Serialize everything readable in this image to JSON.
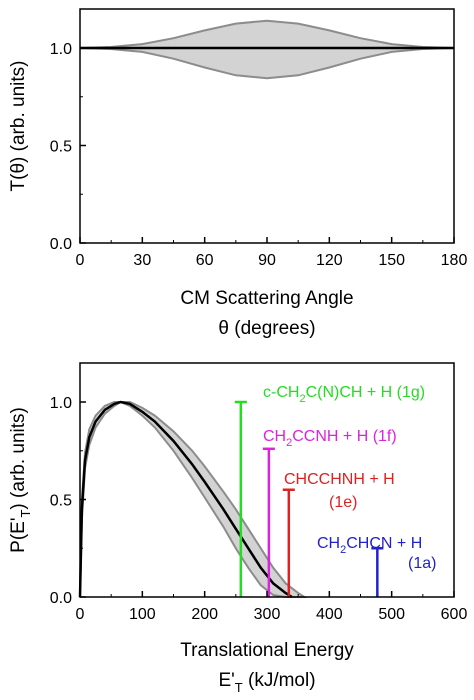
{
  "chart_data": [
    {
      "type": "area",
      "xlabel_line1": "CM Scattering Angle",
      "xlabel_line2": "θ (degrees)",
      "ylabel": "T(θ) (arb. units)",
      "xlim": [
        0,
        180
      ],
      "ylim": [
        0,
        1.2
      ],
      "xticks": [
        0,
        30,
        60,
        90,
        120,
        150,
        180
      ],
      "xtick_labels": [
        "0",
        "30",
        "60",
        "90",
        "120",
        "150",
        "180"
      ],
      "yticks": [
        0.0,
        0.5,
        1.0
      ],
      "ytick_labels": [
        "0.0",
        "0.5",
        "1.0"
      ],
      "best_fit": {
        "x": [
          0,
          180
        ],
        "y": [
          1.0,
          1.0
        ]
      },
      "envelope": {
        "x": [
          0,
          15,
          30,
          45,
          60,
          75,
          90,
          105,
          120,
          135,
          150,
          165,
          180
        ],
        "upper": [
          1.0,
          1.005,
          1.02,
          1.05,
          1.09,
          1.125,
          1.14,
          1.125,
          1.09,
          1.05,
          1.02,
          1.005,
          1.0
        ],
        "lower": [
          1.0,
          0.995,
          0.98,
          0.945,
          0.9,
          0.86,
          0.845,
          0.86,
          0.9,
          0.945,
          0.98,
          0.995,
          1.0
        ]
      },
      "colors": {
        "line": "#000000",
        "band_fill": "#d3d3d3",
        "band_edge": "#8c8c8c"
      }
    },
    {
      "type": "line",
      "xlabel_line1": "Translational Energy",
      "xlabel_main": "E'",
      "xlabel_sub": "T",
      "xlabel_rest": " (kJ/mol)",
      "ylabel_main": "P(E'",
      "ylabel_sub": "T",
      "ylabel_rest": ") (arb. units)",
      "xlim": [
        0,
        600
      ],
      "ylim": [
        0,
        1.2
      ],
      "xticks": [
        0,
        100,
        200,
        300,
        400,
        500,
        600
      ],
      "xtick_labels": [
        "0",
        "100",
        "200",
        "300",
        "400",
        "500",
        "600"
      ],
      "yticks": [
        0.0,
        0.5,
        1.0
      ],
      "ytick_labels": [
        "0.0",
        "0.5",
        "1.0"
      ],
      "best_fit": {
        "x": [
          0,
          3,
          8,
          15,
          25,
          40,
          55,
          65,
          80,
          100,
          120,
          150,
          180,
          200,
          230,
          250,
          270,
          290,
          310,
          330,
          340
        ],
        "y": [
          0.0,
          0.45,
          0.7,
          0.82,
          0.9,
          0.96,
          0.99,
          1.0,
          0.99,
          0.95,
          0.9,
          0.8,
          0.68,
          0.59,
          0.45,
          0.35,
          0.25,
          0.15,
          0.07,
          0.02,
          0.0
        ]
      },
      "envelope": {
        "x": [
          0,
          3,
          8,
          15,
          25,
          40,
          55,
          65,
          80,
          100,
          120,
          150,
          180,
          200,
          230,
          250,
          270,
          290,
          310,
          330,
          350,
          360
        ],
        "upper": [
          0.0,
          0.5,
          0.74,
          0.86,
          0.93,
          0.98,
          1.0,
          1.0,
          1.0,
          0.97,
          0.93,
          0.85,
          0.75,
          0.67,
          0.54,
          0.45,
          0.35,
          0.25,
          0.15,
          0.07,
          0.02,
          0.0
        ],
        "lower": [
          0.0,
          0.4,
          0.66,
          0.78,
          0.87,
          0.94,
          0.98,
          1.0,
          0.98,
          0.93,
          0.87,
          0.75,
          0.61,
          0.51,
          0.36,
          0.25,
          0.15,
          0.06,
          0.01,
          0.0,
          0.0,
          0.0
        ]
      },
      "thresholds": [
        {
          "x": 258,
          "height": 1.0,
          "color": "#22dd22",
          "label": "c-CH2C(N)CH + H (1g)"
        },
        {
          "x": 303,
          "height": 0.76,
          "color": "#dd22dd",
          "label": "CH2CCNH + H (1f)"
        },
        {
          "x": 335,
          "height": 0.55,
          "color": "#dd2222",
          "label": "CHCCHNH + H (1e)"
        },
        {
          "x": 477,
          "height": 0.25,
          "color": "#2222cc",
          "label": "CH2CHCN + H (1a)"
        }
      ],
      "colors": {
        "line": "#000000",
        "band_fill": "#d3d3d3",
        "band_edge": "#8c8c8c"
      }
    }
  ],
  "annotations": {
    "g": {
      "pre": "c-CH",
      "sub": "2",
      "post": "C(N)CH + H (1g)"
    },
    "f": {
      "pre": "CH",
      "sub": "2",
      "post": "CCNH + H (1f)"
    },
    "e_line1": "CHCCHNH + H",
    "e_line2": "(1e)",
    "a": {
      "pre": "CH",
      "sub": "2",
      "post": "CHCN + H"
    },
    "a_line2": "(1a)"
  }
}
